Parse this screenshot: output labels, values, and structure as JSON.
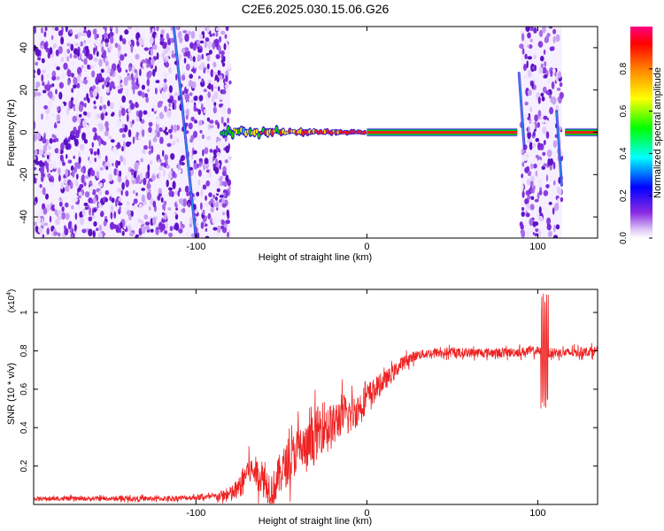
{
  "title": "C2E6.2025.030.15.06.G26",
  "chart_data": [
    {
      "type": "heatmap",
      "xlabel": "Height of straight line (km)",
      "ylabel": "Frequency (Hz)",
      "xlim": [
        -195,
        135
      ],
      "ylim": [
        -50,
        50
      ],
      "xticks": [
        -100,
        0,
        100
      ],
      "yticks": [
        -40,
        -20,
        0,
        20,
        40
      ],
      "colorbar": {
        "label": "Normalized spectral amplitude",
        "range": [
          0,
          1
        ],
        "ticks": [
          "0.0",
          "0.2",
          "0.4",
          "0.6",
          "0.8"
        ]
      },
      "noise_regions": [
        {
          "x": [
            -195,
            -80
          ],
          "density": "high"
        },
        {
          "x": [
            90,
            114
          ],
          "density": "medium"
        }
      ],
      "tone": {
        "frequency": 0,
        "segments": [
          {
            "x": [
              -85,
              0
            ],
            "strength": "noisy",
            "amplitude": 0.45
          },
          {
            "x": [
              0,
              88
            ],
            "strength": "strong",
            "amplitude": 1.0
          },
          {
            "x": [
              116,
              135
            ],
            "strength": "strong",
            "amplitude": 1.0
          }
        ]
      },
      "streaks": [
        {
          "x": [
            -113,
            -100
          ],
          "y": [
            50,
            -50
          ]
        },
        {
          "x": [
            89,
            92
          ],
          "y": [
            28,
            -6
          ]
        },
        {
          "x": [
            111,
            114
          ],
          "y": [
            10,
            -25
          ]
        }
      ]
    },
    {
      "type": "line",
      "xlabel": "Height of straight line (km)",
      "ylabel": "SNR (10 * v/v)",
      "y_multiplier": "(x10",
      "y_multiplier_exp": "4",
      "y_multiplier_close": ")",
      "xlim": [
        -195,
        135
      ],
      "ylim": [
        0,
        1.12
      ],
      "xticks": [
        -100,
        0,
        100
      ],
      "yticks": [
        0.2,
        0.4,
        0.6,
        0.8,
        1
      ],
      "color": "#ee2222",
      "series": [
        {
          "points": [
            [
              -195,
              0.03
            ],
            [
              -120,
              0.03
            ],
            [
              -90,
              0.04
            ],
            [
              -80,
              0.05
            ],
            [
              -75,
              0.08
            ],
            [
              -70,
              0.18
            ],
            [
              -65,
              0.17
            ],
            [
              -60,
              0.12
            ],
            [
              -55,
              0.07
            ],
            [
              -50,
              0.18
            ],
            [
              -45,
              0.22
            ],
            [
              -40,
              0.3
            ],
            [
              -35,
              0.28
            ],
            [
              -30,
              0.36
            ],
            [
              -25,
              0.42
            ],
            [
              -20,
              0.4
            ],
            [
              -15,
              0.47
            ],
            [
              -10,
              0.46
            ],
            [
              -5,
              0.5
            ],
            [
              0,
              0.56
            ],
            [
              5,
              0.6
            ],
            [
              10,
              0.64
            ],
            [
              15,
              0.68
            ],
            [
              20,
              0.73
            ],
            [
              25,
              0.76
            ],
            [
              30,
              0.78
            ],
            [
              40,
              0.79
            ],
            [
              60,
              0.79
            ],
            [
              80,
              0.79
            ],
            [
              100,
              0.8
            ],
            [
              103,
              0.78
            ],
            [
              106,
              0.79
            ],
            [
              120,
              0.79
            ],
            [
              135,
              0.8
            ]
          ],
          "noise": [
            [
              -195,
              0.01
            ],
            [
              -90,
              0.015
            ],
            [
              -75,
              0.06
            ],
            [
              -55,
              0.1
            ],
            [
              -30,
              0.14
            ],
            [
              -10,
              0.1
            ],
            [
              10,
              0.05
            ],
            [
              30,
              0.025
            ],
            [
              135,
              0.025
            ]
          ],
          "spike": {
            "x": 104,
            "max": 1.1,
            "min": 0.5
          }
        }
      ]
    }
  ]
}
